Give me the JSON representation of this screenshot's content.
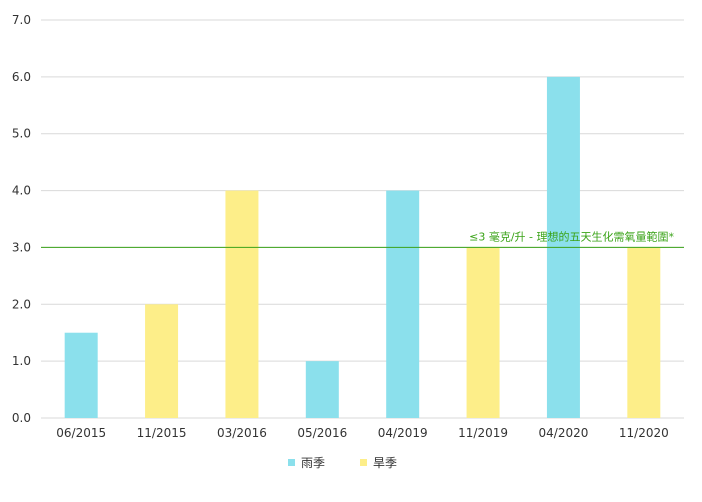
{
  "chart_data": {
    "type": "bar",
    "title": "",
    "xlabel": "",
    "ylabel": "",
    "categories": [
      "06/2015",
      "11/2015",
      "03/2016",
      "05/2016",
      "04/2019",
      "11/2019",
      "04/2020",
      "11/2020"
    ],
    "values": [
      1.5,
      2.0,
      4.0,
      1.0,
      4.0,
      3.0,
      6.0,
      3.0
    ],
    "bar_series": [
      "rainy",
      "dry",
      "dry",
      "rainy",
      "rainy",
      "dry",
      "rainy",
      "dry"
    ],
    "series": [
      {
        "key": "rainy",
        "name": "雨季",
        "color": "#8be0ec"
      },
      {
        "key": "dry",
        "name": "旱季",
        "color": "#fdee89"
      }
    ],
    "ylim": [
      0,
      7
    ],
    "yticks": [
      "0.0",
      "1.0",
      "2.0",
      "3.0",
      "4.0",
      "5.0",
      "6.0",
      "7.0"
    ],
    "grid": true,
    "legend_position": "bottom",
    "reference_line": {
      "value": 3.0,
      "label": "≤3 毫克/升 - 理想的五天生化需氧量範圍*",
      "color": "#3aa318"
    }
  }
}
